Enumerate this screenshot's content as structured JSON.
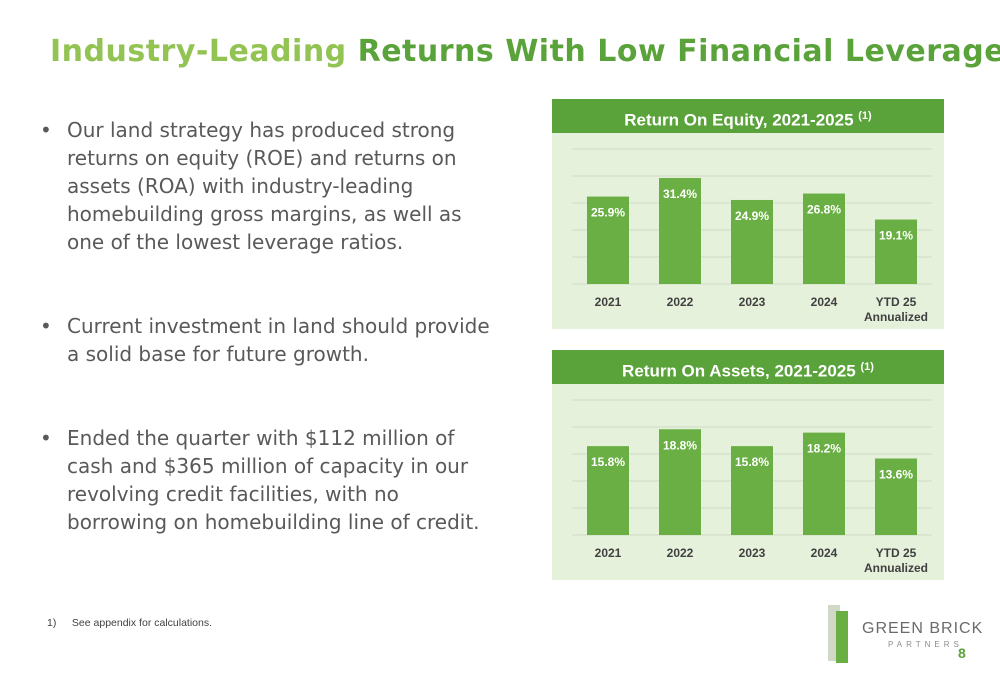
{
  "title": {
    "part1": "Industry-Leading",
    "part2": "Returns With Low Financial Leverage"
  },
  "bullets": [
    "Our land strategy has produced strong returns on equity (ROE) and returns on assets (ROA) with industry-leading homebuilding gross margins, as well as one of the lowest leverage ratios.",
    "Current investment in land should provide a solid base for future growth.",
    "Ended the quarter with $112 million of cash and $365 million of capacity in our revolving credit facilities, with no borrowing on homebuilding line of credit."
  ],
  "footnote": {
    "number": "1)",
    "text": "See appendix for calculations."
  },
  "logo": {
    "name": "GREEN BRICK",
    "sub": "PARTNERS"
  },
  "page_number": "8",
  "colors": {
    "bar": "#6aaf44",
    "panel_bg": "#e6f1dc",
    "header": "#5aa23a",
    "title_light": "#92c353",
    "title_dark": "#5aa23a"
  },
  "chart_data": [
    {
      "type": "bar",
      "title": "Return On Equity, 2021-2025",
      "title_note": "(1)",
      "categories": [
        "2021",
        "2022",
        "2023",
        "2024",
        "YTD 25 Annualized"
      ],
      "values": [
        25.9,
        31.4,
        24.9,
        26.8,
        19.1
      ],
      "value_labels": [
        "25.9%",
        "31.4%",
        "24.9%",
        "26.8%",
        "19.1%"
      ],
      "ylim": [
        0,
        40
      ],
      "grid": true
    },
    {
      "type": "bar",
      "title": "Return On Assets, 2021-2025",
      "title_note": "(1)",
      "categories": [
        "2021",
        "2022",
        "2023",
        "2024",
        "YTD 25 Annualized"
      ],
      "values": [
        15.8,
        18.8,
        15.8,
        18.2,
        13.6
      ],
      "value_labels": [
        "15.8%",
        "18.8%",
        "15.8%",
        "18.2%",
        "13.6%"
      ],
      "ylim": [
        0,
        24
      ],
      "grid": true
    }
  ]
}
